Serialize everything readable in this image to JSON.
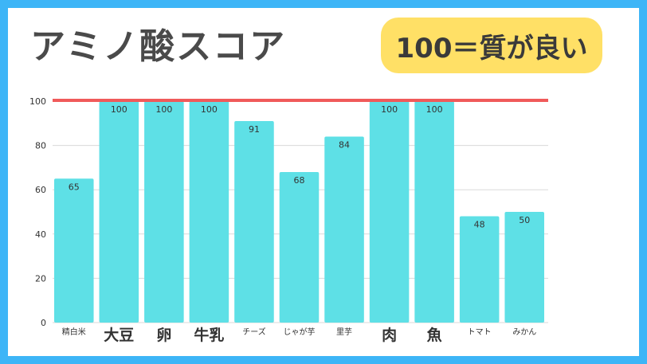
{
  "title": "アミノ酸スコア",
  "badge": "100＝質が良い",
  "colors": {
    "bar": "#5ee0e6",
    "reference_line": "#f05a5a",
    "frame": "#3db5f7",
    "badge": "#ffe066"
  },
  "chart_data": {
    "type": "bar",
    "categories": [
      "精白米",
      "大豆",
      "卵",
      "牛乳",
      "チーズ",
      "じゃが芋",
      "里芋",
      "肉",
      "魚",
      "トマト",
      "みかん"
    ],
    "emphasized": [
      false,
      true,
      true,
      true,
      false,
      false,
      false,
      true,
      true,
      false,
      false
    ],
    "values": [
      65,
      100,
      100,
      100,
      91,
      68,
      84,
      100,
      100,
      48,
      50
    ],
    "ylim": [
      0,
      100
    ],
    "yticks": [
      0,
      20,
      40,
      60,
      80,
      100
    ],
    "reference_line": 100,
    "grid": true
  }
}
